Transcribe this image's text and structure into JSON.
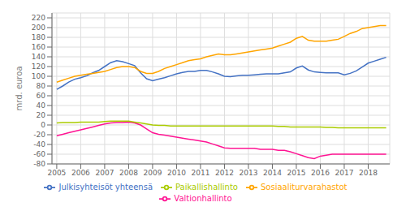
{
  "chart_data": {
    "type": "line",
    "ylabel": "mrd. euroa",
    "x": [
      2005.0,
      2005.25,
      2005.5,
      2005.75,
      2006.0,
      2006.25,
      2006.5,
      2006.75,
      2007.0,
      2007.25,
      2007.5,
      2007.75,
      2008.0,
      2008.25,
      2008.5,
      2008.75,
      2009.0,
      2009.25,
      2009.5,
      2009.75,
      2010.0,
      2010.25,
      2010.5,
      2010.75,
      2011.0,
      2011.25,
      2011.5,
      2011.75,
      2012.0,
      2012.25,
      2012.5,
      2012.75,
      2013.0,
      2013.25,
      2013.5,
      2013.75,
      2014.0,
      2014.25,
      2014.5,
      2014.75,
      2015.0,
      2015.25,
      2015.5,
      2015.75,
      2016.0,
      2016.25,
      2016.5,
      2016.75,
      2017.0,
      2017.25,
      2017.5,
      2017.75,
      2018.0,
      2018.25,
      2018.5,
      2018.75
    ],
    "series": [
      {
        "name": "Julkisyhteisöt yhteensä",
        "color": "#4472C4",
        "values": [
          73,
          80,
          88,
          94,
          97,
          101,
          107,
          112,
          120,
          128,
          132,
          130,
          126,
          122,
          107,
          95,
          91,
          94,
          97,
          101,
          105,
          108,
          110,
          110,
          112,
          112,
          109,
          105,
          100,
          99,
          101,
          102,
          102,
          103,
          104,
          105,
          105,
          105,
          107,
          109,
          117,
          121,
          113,
          109,
          108,
          107,
          107,
          107,
          103,
          106,
          111,
          119,
          127,
          131,
          135,
          139
        ]
      },
      {
        "name": "Valtionhallinto",
        "color": "#FF1493",
        "values": [
          -22,
          -19,
          -16,
          -13,
          -10,
          -7,
          -4,
          -1,
          2,
          4,
          5,
          5,
          6,
          4,
          0,
          -8,
          -16,
          -19,
          -21,
          -23,
          -25,
          -27,
          -29,
          -31,
          -33,
          -35,
          -39,
          -43,
          -47,
          -48,
          -48,
          -48,
          -48,
          -48,
          -50,
          -50,
          -50,
          -52,
          -52,
          -55,
          -59,
          -63,
          -67,
          -69,
          -64,
          -62,
          -60,
          -60,
          -60,
          -60,
          -60,
          -60,
          -60,
          -60,
          -60,
          -60
        ]
      },
      {
        "name": "Paikallishallinto",
        "color": "#AACC00",
        "values": [
          4,
          5,
          5,
          5,
          6,
          6,
          6,
          6,
          7,
          8,
          8,
          8,
          8,
          6,
          4,
          2,
          0,
          -1,
          -1,
          -2,
          -2,
          -2,
          -2,
          -2,
          -2,
          -2,
          -2,
          -2,
          -2,
          -2,
          -2,
          -2,
          -2,
          -2,
          -2,
          -2,
          -2,
          -3,
          -3,
          -4,
          -4,
          -4,
          -4,
          -4,
          -4,
          -5,
          -5,
          -6,
          -6,
          -6,
          -6,
          -6,
          -6,
          -6,
          -6,
          -6
        ]
      },
      {
        "name": "Sosiaaliturvarahastot",
        "color": "#FFA500",
        "values": [
          88,
          92,
          96,
          100,
          102,
          104,
          106,
          108,
          110,
          114,
          118,
          120,
          120,
          118,
          110,
          106,
          106,
          110,
          116,
          120,
          124,
          128,
          132,
          134,
          136,
          140,
          143,
          146,
          144,
          144,
          146,
          148,
          150,
          152,
          154,
          156,
          158,
          162,
          166,
          170,
          178,
          182,
          174,
          172,
          172,
          172,
          174,
          176,
          182,
          188,
          192,
          198,
          200,
          202,
          204,
          204
        ]
      }
    ],
    "xlim": [
      2004.8,
      2018.9
    ],
    "xticks": [
      2005,
      2006,
      2007,
      2008,
      2009,
      2010,
      2011,
      2012,
      2013,
      2014,
      2015,
      2016,
      2017,
      2018
    ],
    "ylim": [
      -80,
      230
    ],
    "yticks": [
      -80,
      -60,
      -40,
      -20,
      0,
      20,
      40,
      60,
      80,
      100,
      120,
      140,
      160,
      180,
      200,
      220
    ],
    "grid": true,
    "legend": "bottom"
  }
}
